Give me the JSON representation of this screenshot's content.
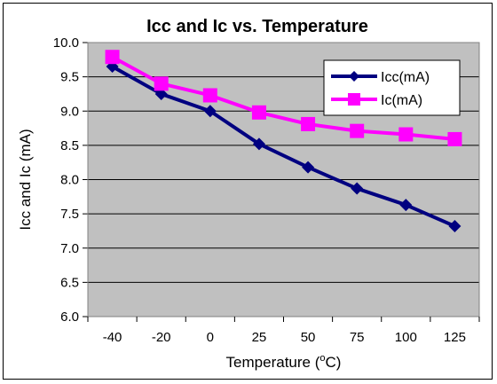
{
  "chart_data": {
    "type": "line",
    "title": "Icc and Ic vs. Temperature",
    "xlabel_main": "Temperature (",
    "xlabel_sup": "o",
    "xlabel_tail": "C)",
    "ylabel": "Icc and Ic (mA)",
    "categories": [
      "-40",
      "-20",
      "0",
      "25",
      "50",
      "75",
      "100",
      "125"
    ],
    "ylim": [
      6.0,
      10.0
    ],
    "yticks": [
      "6.0",
      "6.5",
      "7.0",
      "7.5",
      "8.0",
      "8.5",
      "9.0",
      "9.5",
      "10.0"
    ],
    "grid": true,
    "legend_position": "top-right",
    "plot_background": "#c0c0c0",
    "series": [
      {
        "name": "Icc(mA)",
        "color": "#000080",
        "marker": "diamond",
        "values": [
          9.65,
          9.25,
          9.0,
          8.52,
          8.18,
          7.87,
          7.63,
          7.32
        ]
      },
      {
        "name": "Ic(mA)",
        "color": "#ff00ff",
        "marker": "square",
        "values": [
          9.79,
          9.4,
          9.23,
          8.98,
          8.81,
          8.71,
          8.66,
          8.59
        ]
      }
    ]
  }
}
